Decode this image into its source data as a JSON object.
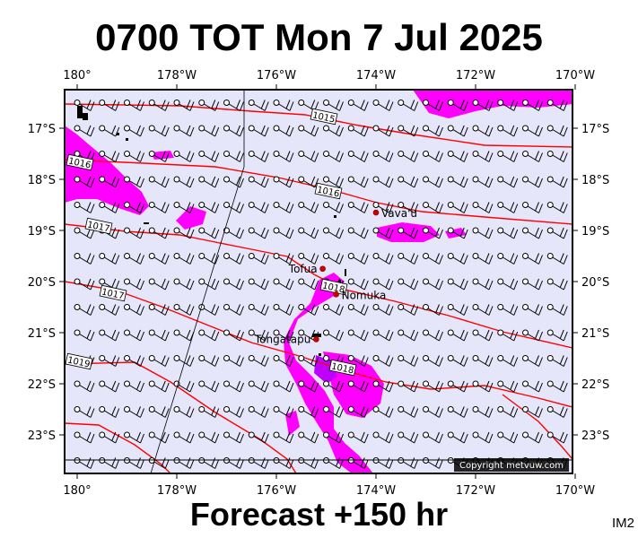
{
  "title": "0700 TOT Mon 7 Jul 2025",
  "footer": "Forecast +150 hr",
  "code_label": "IM2",
  "copyright": "Copyright metvuw.com",
  "colors": {
    "ocean": "#e6e6fa",
    "precip": "#ff00ff",
    "precip_heavy": "#b400ff",
    "isobar": "#ff0000",
    "land_marker": "#cc0000",
    "frame": "#000000"
  },
  "lon_labels": [
    "180°",
    "178°W",
    "176°W",
    "174°W",
    "172°W",
    "170°W"
  ],
  "lat_labels": [
    "17°S",
    "18°S",
    "19°S",
    "20°S",
    "21°S",
    "22°S",
    "23°S"
  ],
  "isobar_labels": [
    "1015",
    "1016",
    "1016",
    "1017",
    "1017",
    "1018",
    "1018",
    "1019"
  ],
  "places": [
    {
      "name": "Vava'u",
      "lon": -174.0,
      "lat": -18.65
    },
    {
      "name": "Tofua",
      "lon": -175.07,
      "lat": -19.75
    },
    {
      "name": "Nomuka",
      "lon": -174.8,
      "lat": -20.25
    },
    {
      "name": "Tongatapu",
      "lon": -175.2,
      "lat": -21.13
    }
  ],
  "wind_barb_grid": {
    "lon_start": -180.0,
    "lon_end": -170.0,
    "lon_step": 0.5,
    "lat_start": -16.5,
    "lat_end": -23.5,
    "lat_step": 0.5,
    "typical_direction": "south-east trade winds",
    "typical_speed_kt": 20
  }
}
